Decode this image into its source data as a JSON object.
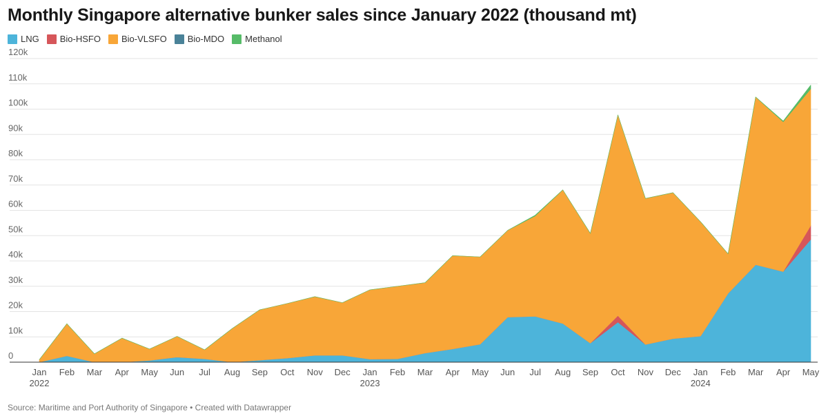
{
  "page": {
    "title": "Monthly Singapore alternative bunker sales since January 2022 (thousand mt)",
    "source": "Source: Maritime and Port Authority of Singapore • Created with Datawrapper"
  },
  "chart_data": {
    "type": "area",
    "stacked": true,
    "title": "Monthly Singapore alternative bunker sales since January 2022 (thousand mt)",
    "xlabel": "",
    "ylabel": "",
    "ylim": [
      0,
      120000
    ],
    "yticks": [
      0,
      10000,
      20000,
      30000,
      40000,
      50000,
      60000,
      70000,
      80000,
      90000,
      100000,
      110000,
      120000
    ],
    "ytick_labels": [
      "0",
      "10k",
      "20k",
      "30k",
      "40k",
      "50k",
      "60k",
      "70k",
      "80k",
      "90k",
      "100k",
      "110k",
      "120k"
    ],
    "grid": true,
    "legend_position": "top-left",
    "categories": [
      "Jan",
      "Feb",
      "Mar",
      "Apr",
      "May",
      "Jun",
      "Jul",
      "Aug",
      "Sep",
      "Oct",
      "Nov",
      "Dec",
      "Jan",
      "Feb",
      "Mar",
      "Apr",
      "May",
      "Jun",
      "Jul",
      "Aug",
      "Sep",
      "Oct",
      "Nov",
      "Dec",
      "Jan",
      "Feb",
      "Mar",
      "Apr",
      "May"
    ],
    "year_labels": [
      {
        "index": 0,
        "label": "2022"
      },
      {
        "index": 12,
        "label": "2023"
      },
      {
        "index": 24,
        "label": "2024"
      }
    ],
    "series": [
      {
        "name": "LNG",
        "color": "#4db4da",
        "values": [
          0,
          2500,
          0,
          0,
          700,
          2000,
          1300,
          0,
          800,
          1600,
          2700,
          2700,
          1200,
          1300,
          3600,
          5200,
          7100,
          17800,
          18100,
          15300,
          7500,
          15800,
          7000,
          9300,
          10300,
          27200,
          38500,
          35800,
          48500
        ]
      },
      {
        "name": "Bio-HSFO",
        "color": "#d6565a",
        "values": [
          0,
          0,
          0,
          0,
          0,
          0,
          0,
          0,
          0,
          0,
          0,
          0,
          0,
          0,
          0,
          0,
          0,
          0,
          0,
          0,
          0,
          2600,
          0,
          0,
          0,
          0,
          0,
          0,
          5500
        ]
      },
      {
        "name": "Bio-VLSFO",
        "color": "#f8a638",
        "values": [
          1000,
          12700,
          3300,
          9500,
          4500,
          8200,
          3600,
          13300,
          19900,
          21600,
          23200,
          20800,
          27400,
          28700,
          27800,
          36900,
          34500,
          34300,
          39700,
          52800,
          43400,
          79300,
          57700,
          57700,
          45200,
          15600,
          66300,
          59200,
          54000
        ]
      },
      {
        "name": "Bio-MDO",
        "color": "#4a8298",
        "values": [
          0,
          0,
          0,
          0,
          0,
          0,
          0,
          0,
          0,
          0,
          0,
          0,
          0,
          0,
          0,
          0,
          0,
          0,
          0,
          0,
          0,
          0,
          0,
          0,
          0,
          0,
          0,
          0,
          0
        ]
      },
      {
        "name": "Methanol",
        "color": "#56bb68",
        "values": [
          0,
          0,
          0,
          0,
          0,
          0,
          0,
          0,
          0,
          0,
          0,
          0,
          0,
          0,
          0,
          0,
          0,
          0,
          300,
          0,
          0,
          0,
          0,
          0,
          0,
          0,
          0,
          300,
          1500
        ]
      }
    ]
  }
}
